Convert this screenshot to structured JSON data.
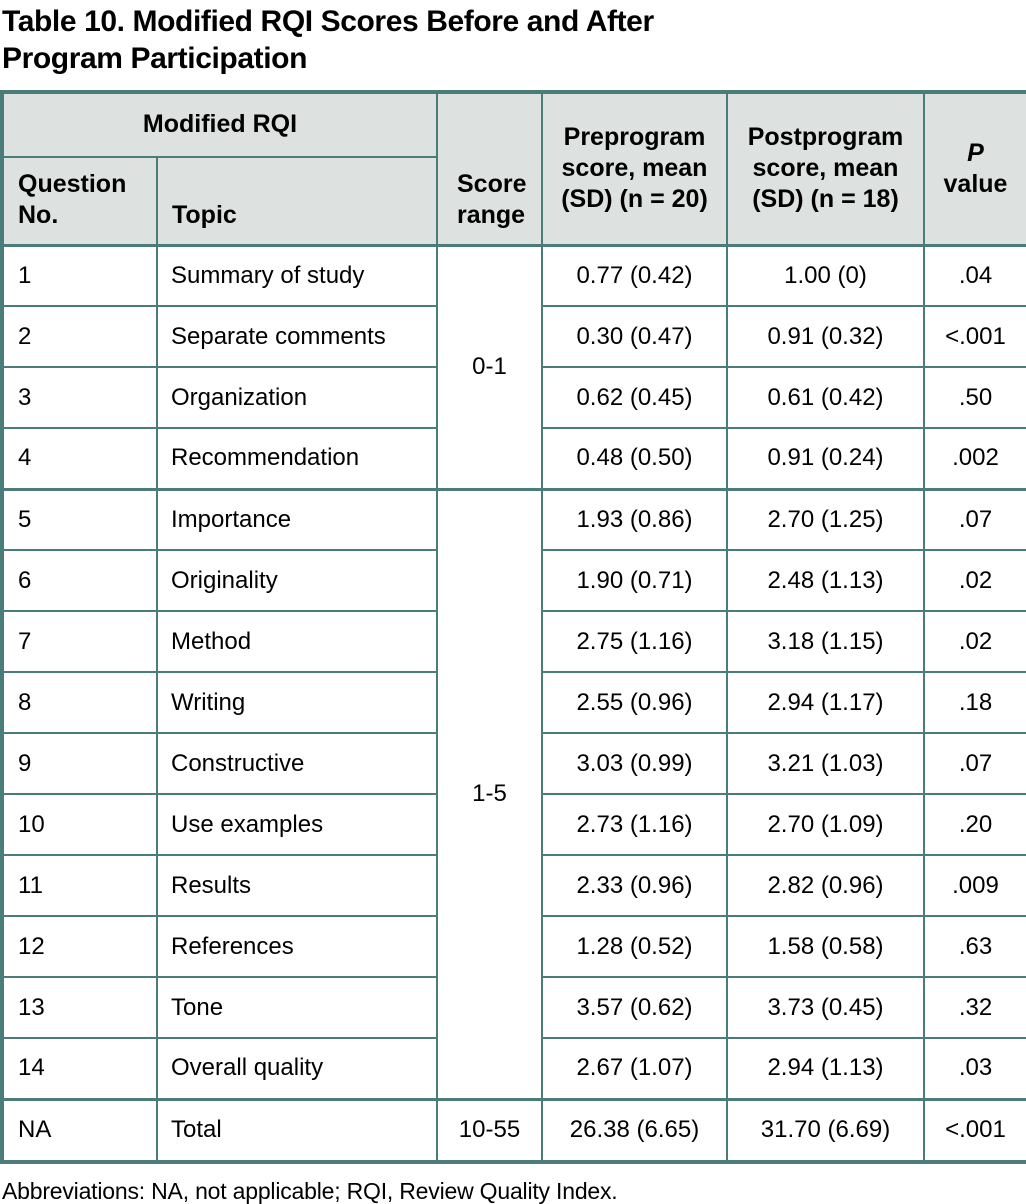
{
  "title": "Table 10. Modified RQI Scores Before and After\nProgram Participation",
  "header": {
    "group_label": "Modified RQI",
    "question_no": "Question\nNo.",
    "topic": "Topic",
    "score_range": "Score\nrange",
    "preprogram": "Preprogram\nscore, mean\n(SD) (n = 20)",
    "postprogram": "Postprogram\nscore, mean\n(SD) (n = 18)",
    "p_italic": "P",
    "p_label": "value"
  },
  "score_ranges": [
    {
      "label": "0-1",
      "span": 4
    },
    {
      "label": "1-5",
      "span": 10
    }
  ],
  "rows": [
    {
      "no": "1",
      "topic": "Summary of study",
      "pre": "0.77 (0.42)",
      "post": "1.00 (0)",
      "p": ".04"
    },
    {
      "no": "2",
      "topic": "Separate comments",
      "pre": "0.30 (0.47)",
      "post": "0.91 (0.32)",
      "p": "<.001"
    },
    {
      "no": "3",
      "topic": "Organization",
      "pre": "0.62 (0.45)",
      "post": "0.61 (0.42)",
      "p": ".50"
    },
    {
      "no": "4",
      "topic": "Recommendation",
      "pre": "0.48 (0.50)",
      "post": "0.91 (0.24)",
      "p": ".002"
    },
    {
      "no": "5",
      "topic": "Importance",
      "pre": "1.93 (0.86)",
      "post": "2.70 (1.25)",
      "p": ".07"
    },
    {
      "no": "6",
      "topic": "Originality",
      "pre": "1.90 (0.71)",
      "post": "2.48 (1.13)",
      "p": ".02"
    },
    {
      "no": "7",
      "topic": "Method",
      "pre": "2.75 (1.16)",
      "post": "3.18 (1.15)",
      "p": ".02"
    },
    {
      "no": "8",
      "topic": "Writing",
      "pre": "2.55 (0.96)",
      "post": "2.94 (1.17)",
      "p": ".18"
    },
    {
      "no": "9",
      "topic": "Constructive",
      "pre": "3.03 (0.99)",
      "post": "3.21 (1.03)",
      "p": ".07"
    },
    {
      "no": "10",
      "topic": "Use examples",
      "pre": "2.73 (1.16)",
      "post": "2.70 (1.09)",
      "p": ".20"
    },
    {
      "no": "11",
      "topic": "Results",
      "pre": "2.33 (0.96)",
      "post": "2.82 (0.96)",
      "p": ".009"
    },
    {
      "no": "12",
      "topic": "References",
      "pre": "1.28 (0.52)",
      "post": "1.58 (0.58)",
      "p": ".63"
    },
    {
      "no": "13",
      "topic": "Tone",
      "pre": "3.57 (0.62)",
      "post": "3.73 (0.45)",
      "p": ".32"
    },
    {
      "no": "14",
      "topic": "Overall quality",
      "pre": "2.67 (1.07)",
      "post": "2.94 (1.13)",
      "p": ".03"
    }
  ],
  "total_row": {
    "no": "NA",
    "topic": "Total",
    "range": "10-55",
    "pre": "26.38 (6.65)",
    "post": "31.70 (6.69)",
    "p": "<.001"
  },
  "footnote": "Abbreviations: NA, not applicable; RQI, Review Quality Index.",
  "colors": {
    "border": "#4a7c7a",
    "header_bg": "#dde2e0",
    "text": "#000000"
  }
}
